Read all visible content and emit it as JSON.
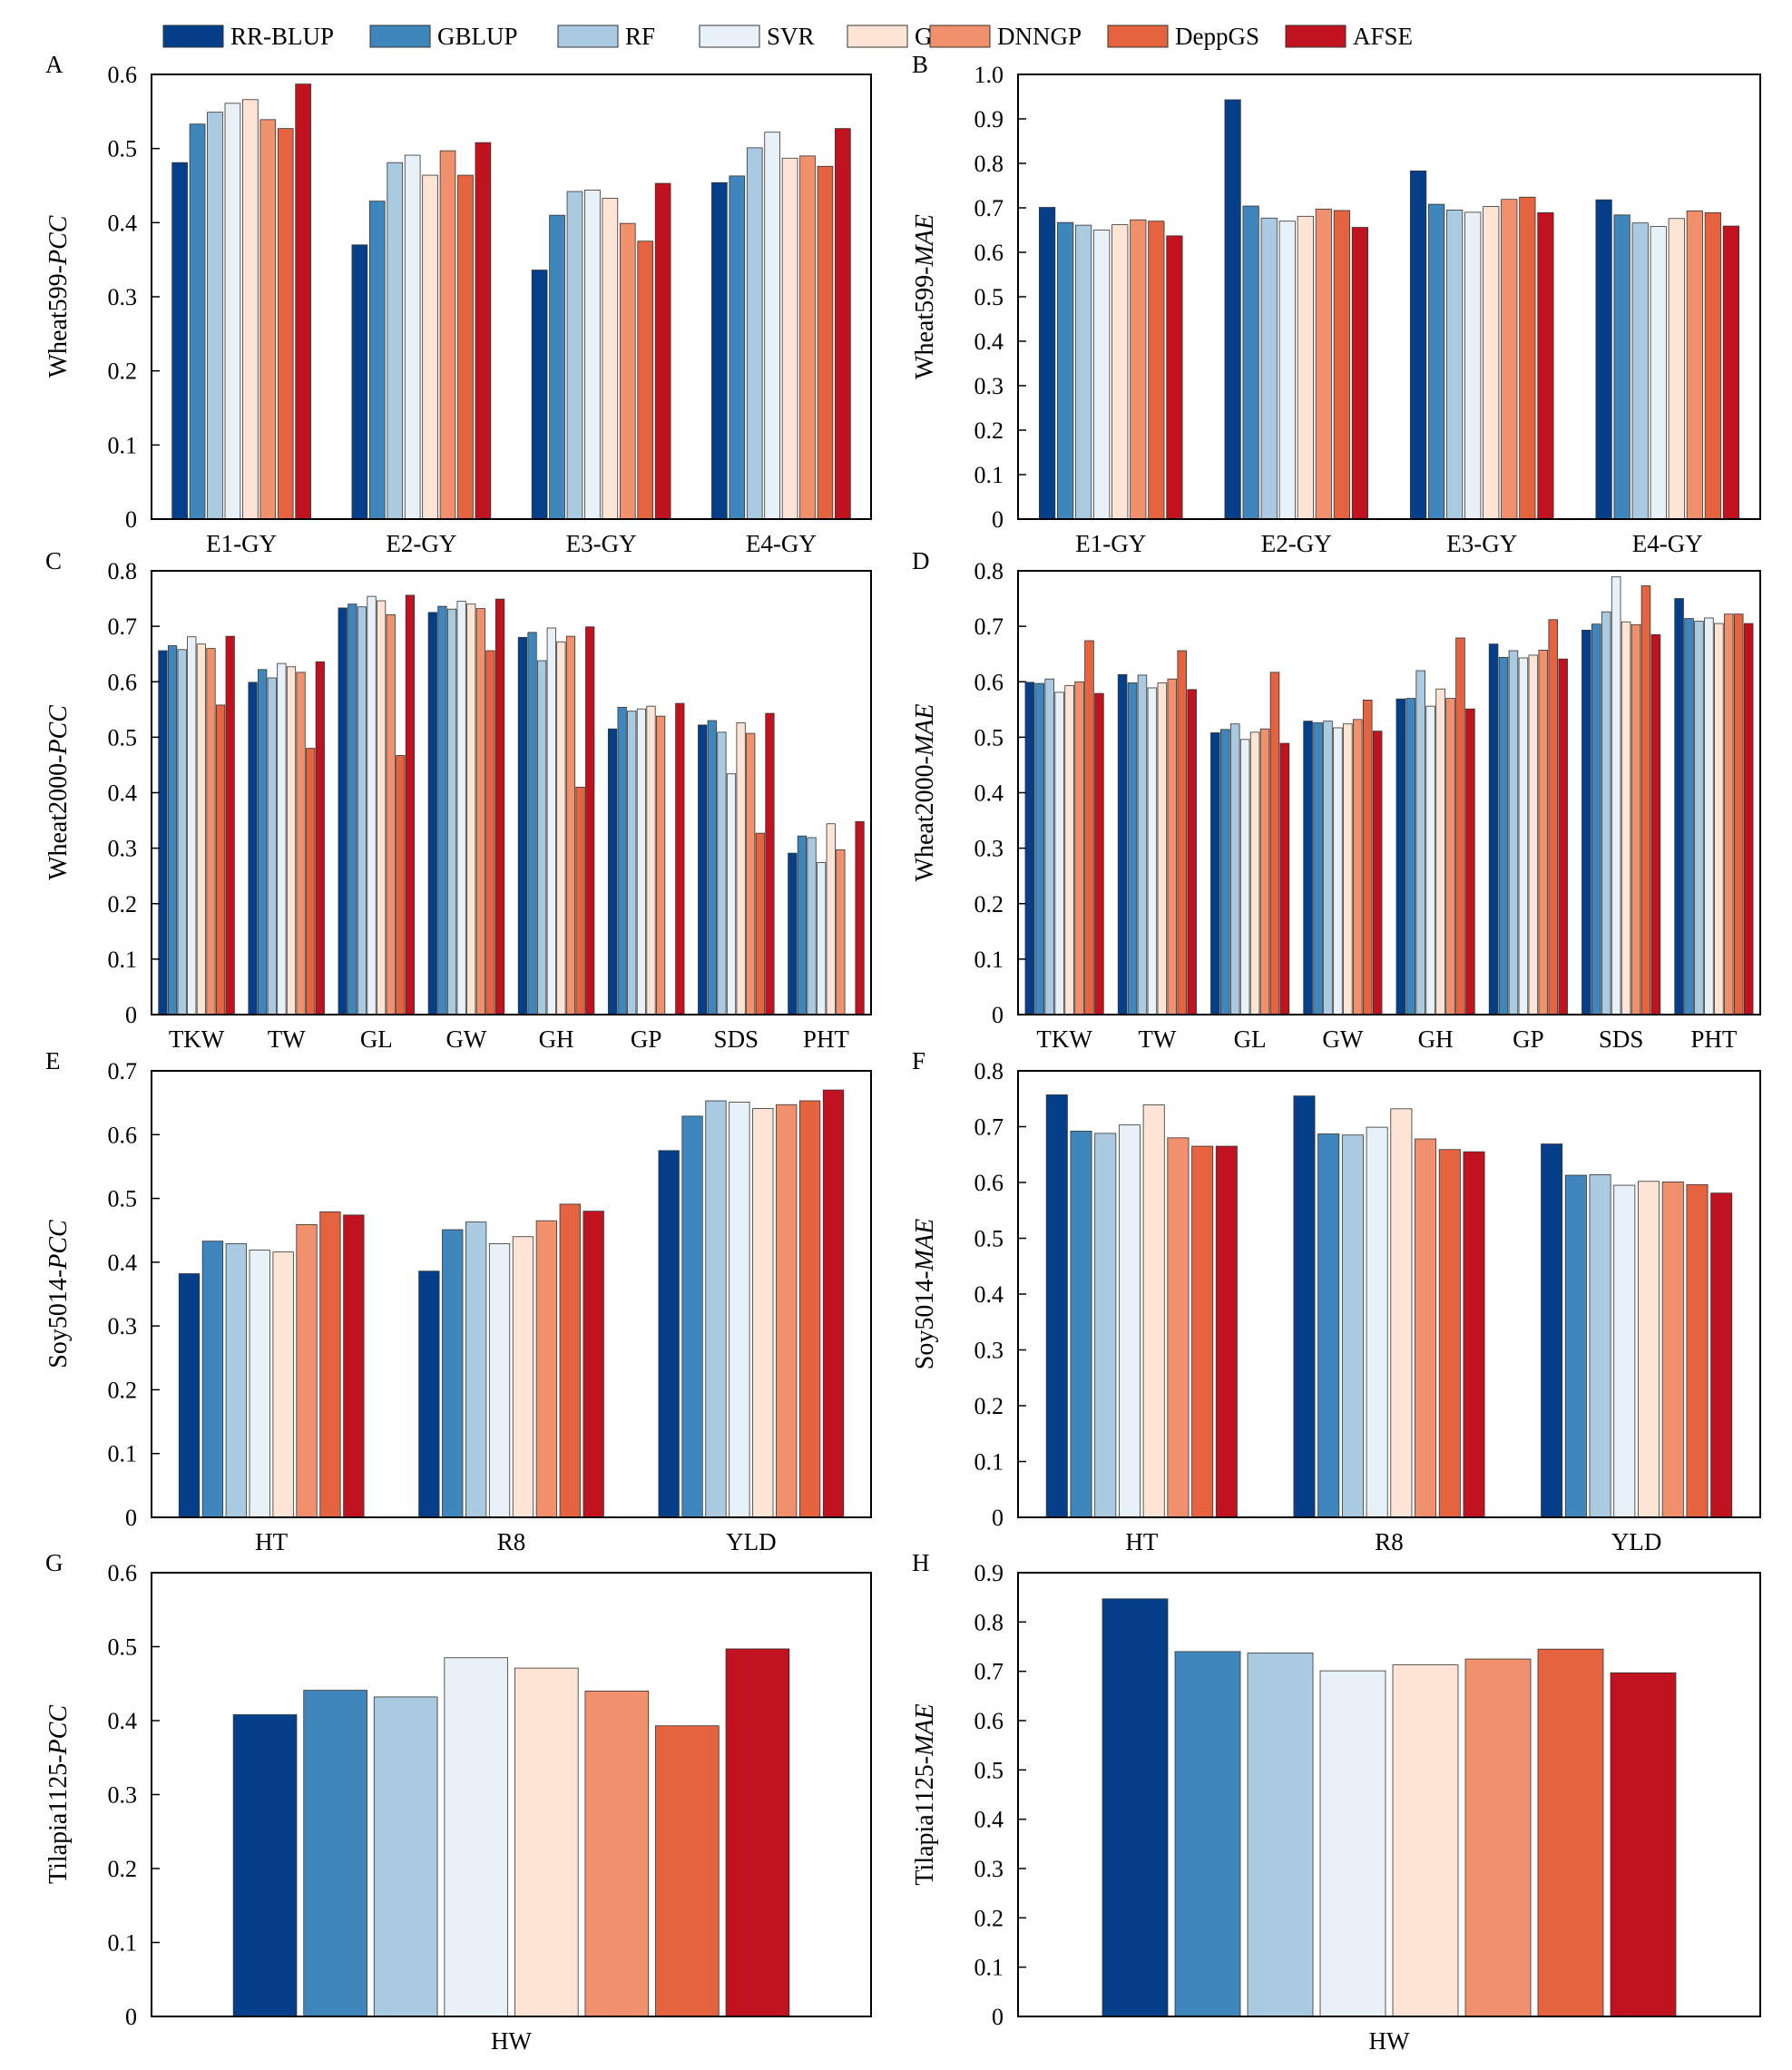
{
  "legend": {
    "items": [
      {
        "name": "RR-BLUP",
        "color": "#053f8a"
      },
      {
        "name": "GBLUP",
        "color": "#3f86bd"
      },
      {
        "name": "RF",
        "color": "#a9cae1"
      },
      {
        "name": "SVR",
        "color": "#e8f0f8"
      },
      {
        "name": "GBR",
        "color": "#fde4d5"
      },
      {
        "name": "DNNGP",
        "color": "#f0906c"
      },
      {
        "name": "DeppGS",
        "color": "#e6633f"
      },
      {
        "name": "AFSE",
        "color": "#c1121f"
      }
    ]
  },
  "chart_data": [
    {
      "panel": "A",
      "type": "bar",
      "ylabel_prefix": "Wheat599-",
      "ylabel_metric": "PCC",
      "ylim": [
        0,
        0.6
      ],
      "yticks": [
        "0",
        "0.1",
        "0.2",
        "0.3",
        "0.4",
        "0.5",
        "0.6"
      ],
      "categories": [
        "E1-GY",
        "E2-GY",
        "E3-GY",
        "E4-GY"
      ],
      "series": [
        {
          "name": "RR-BLUP",
          "values": [
            0.481,
            0.37,
            0.336,
            0.454
          ]
        },
        {
          "name": "GBLUP",
          "values": [
            0.533,
            0.429,
            0.41,
            0.463
          ]
        },
        {
          "name": "RF",
          "values": [
            0.549,
            0.481,
            0.442,
            0.501
          ]
        },
        {
          "name": "SVR",
          "values": [
            0.561,
            0.491,
            0.444,
            0.522
          ]
        },
        {
          "name": "GBR",
          "values": [
            0.566,
            0.464,
            0.433,
            0.487
          ]
        },
        {
          "name": "DNNGP",
          "values": [
            0.539,
            0.497,
            0.399,
            0.49
          ]
        },
        {
          "name": "DeppGS",
          "values": [
            0.527,
            0.464,
            0.375,
            0.476
          ]
        },
        {
          "name": "AFSE",
          "values": [
            0.587,
            0.508,
            0.453,
            0.527
          ]
        }
      ]
    },
    {
      "panel": "B",
      "type": "bar",
      "ylabel_prefix": "Wheat599-",
      "ylabel_metric": "MAE",
      "ylim": [
        0,
        1.0
      ],
      "yticks": [
        "0",
        "0.1",
        "0.2",
        "0.3",
        "0.4",
        "0.5",
        "0.6",
        "0.7",
        "0.8",
        "0.9",
        "1.0"
      ],
      "categories": [
        "E1-GY",
        "E2-GY",
        "E3-GY",
        "E4-GY"
      ],
      "series": [
        {
          "name": "RR-BLUP",
          "values": [
            0.701,
            0.943,
            0.783,
            0.718
          ]
        },
        {
          "name": "GBLUP",
          "values": [
            0.667,
            0.704,
            0.708,
            0.684
          ]
        },
        {
          "name": "RF",
          "values": [
            0.661,
            0.677,
            0.695,
            0.666
          ]
        },
        {
          "name": "SVR",
          "values": [
            0.65,
            0.67,
            0.69,
            0.658
          ]
        },
        {
          "name": "GBR",
          "values": [
            0.662,
            0.681,
            0.703,
            0.676
          ]
        },
        {
          "name": "DNNGP",
          "values": [
            0.673,
            0.697,
            0.719,
            0.693
          ]
        },
        {
          "name": "DeppGS",
          "values": [
            0.67,
            0.694,
            0.724,
            0.689
          ]
        },
        {
          "name": "AFSE",
          "values": [
            0.637,
            0.656,
            0.689,
            0.659
          ]
        }
      ]
    },
    {
      "panel": "C",
      "type": "bar",
      "ylabel_prefix": "Wheat2000-",
      "ylabel_metric": "PCC",
      "ylim": [
        0,
        0.8
      ],
      "yticks": [
        "0",
        "0.1",
        "0.2",
        "0.3",
        "0.4",
        "0.5",
        "0.6",
        "0.7",
        "0.8"
      ],
      "categories": [
        "TKW",
        "TW",
        "GL",
        "GW",
        "GH",
        "GP",
        "SDS",
        "PHT"
      ],
      "series": [
        {
          "name": "RR-BLUP",
          "values": [
            0.656,
            0.599,
            0.733,
            0.725,
            0.68,
            0.515,
            0.522,
            0.291
          ]
        },
        {
          "name": "GBLUP",
          "values": [
            0.665,
            0.622,
            0.74,
            0.736,
            0.689,
            0.554,
            0.53,
            0.322
          ]
        },
        {
          "name": "RF",
          "values": [
            0.658,
            0.607,
            0.735,
            0.731,
            0.638,
            0.547,
            0.509,
            0.319
          ]
        },
        {
          "name": "SVR",
          "values": [
            0.681,
            0.633,
            0.754,
            0.745,
            0.697,
            0.551,
            0.434,
            0.274
          ]
        },
        {
          "name": "GBR",
          "values": [
            0.668,
            0.627,
            0.746,
            0.74,
            0.672,
            0.556,
            0.526,
            0.344
          ]
        },
        {
          "name": "DNNGP",
          "values": [
            0.66,
            0.617,
            0.721,
            0.732,
            0.682,
            0.538,
            0.507,
            0.297
          ]
        },
        {
          "name": "DeppGS",
          "values": [
            0.558,
            0.48,
            0.467,
            0.656,
            0.41,
            null,
            0.327,
            null
          ]
        },
        {
          "name": "AFSE",
          "values": [
            0.682,
            0.636,
            0.756,
            0.749,
            0.699,
            0.561,
            0.543,
            0.348
          ]
        }
      ]
    },
    {
      "panel": "D",
      "type": "bar",
      "ylabel_prefix": "Wheat2000-",
      "ylabel_metric": "MAE",
      "ylim": [
        0,
        0.8
      ],
      "yticks": [
        "0",
        "0.1",
        "0.2",
        "0.3",
        "0.4",
        "0.5",
        "0.6",
        "0.7",
        "0.8"
      ],
      "categories": [
        "TKW",
        "TW",
        "GL",
        "GW",
        "GH",
        "GP",
        "SDS",
        "PHT"
      ],
      "series": [
        {
          "name": "RR-BLUP",
          "values": [
            0.599,
            0.613,
            0.508,
            0.529,
            0.569,
            0.668,
            0.693,
            0.75
          ]
        },
        {
          "name": "GBLUP",
          "values": [
            0.597,
            0.598,
            0.514,
            0.526,
            0.57,
            0.644,
            0.704,
            0.714
          ]
        },
        {
          "name": "RF",
          "values": [
            0.605,
            0.612,
            0.524,
            0.529,
            0.62,
            0.656,
            0.726,
            0.709
          ]
        },
        {
          "name": "SVR",
          "values": [
            0.581,
            0.589,
            0.496,
            0.517,
            0.556,
            0.643,
            0.789,
            0.715
          ]
        },
        {
          "name": "GBR",
          "values": [
            0.593,
            0.598,
            0.509,
            0.524,
            0.587,
            0.648,
            0.708,
            0.705
          ]
        },
        {
          "name": "DNNGP",
          "values": [
            0.6,
            0.605,
            0.515,
            0.532,
            0.57,
            0.657,
            0.703,
            0.722
          ]
        },
        {
          "name": "DeppGS",
          "values": [
            0.674,
            0.656,
            0.617,
            0.567,
            0.679,
            0.712,
            0.773,
            0.722
          ]
        },
        {
          "name": "AFSE",
          "values": [
            0.579,
            0.586,
            0.489,
            0.511,
            0.551,
            0.641,
            0.685,
            0.705
          ]
        }
      ]
    },
    {
      "panel": "E",
      "type": "bar",
      "ylabel_prefix": "Soy5014-",
      "ylabel_metric": "PCC",
      "ylim": [
        0,
        0.7
      ],
      "yticks": [
        "0",
        "0.1",
        "0.2",
        "0.3",
        "0.4",
        "0.5",
        "0.6",
        "0.7"
      ],
      "categories": [
        "HT",
        "R8",
        "YLD"
      ],
      "series": [
        {
          "name": "RR-BLUP",
          "values": [
            0.382,
            0.386,
            0.575
          ]
        },
        {
          "name": "GBLUP",
          "values": [
            0.433,
            0.451,
            0.629
          ]
        },
        {
          "name": "RF",
          "values": [
            0.429,
            0.463,
            0.653
          ]
        },
        {
          "name": "SVR",
          "values": [
            0.419,
            0.429,
            0.651
          ]
        },
        {
          "name": "GBR",
          "values": [
            0.416,
            0.44,
            0.641
          ]
        },
        {
          "name": "DNNGP",
          "values": [
            0.459,
            0.465,
            0.647
          ]
        },
        {
          "name": "DeppGS",
          "values": [
            0.479,
            0.491,
            0.653
          ]
        },
        {
          "name": "AFSE",
          "values": [
            0.474,
            0.48,
            0.67
          ]
        }
      ]
    },
    {
      "panel": "F",
      "type": "bar",
      "ylabel_prefix": "Soy5014-",
      "ylabel_metric": "MAE",
      "ylim": [
        0,
        0.8
      ],
      "yticks": [
        "0",
        "0.1",
        "0.2",
        "0.3",
        "0.4",
        "0.5",
        "0.6",
        "0.7",
        "0.8"
      ],
      "categories": [
        "HT",
        "R8",
        "YLD"
      ],
      "series": [
        {
          "name": "RR-BLUP",
          "values": [
            0.757,
            0.755,
            0.669
          ]
        },
        {
          "name": "GBLUP",
          "values": [
            0.692,
            0.687,
            0.613
          ]
        },
        {
          "name": "RF",
          "values": [
            0.688,
            0.685,
            0.614
          ]
        },
        {
          "name": "SVR",
          "values": [
            0.703,
            0.699,
            0.595
          ]
        },
        {
          "name": "GBR",
          "values": [
            0.739,
            0.732,
            0.602
          ]
        },
        {
          "name": "DNNGP",
          "values": [
            0.68,
            0.678,
            0.601
          ]
        },
        {
          "name": "DeppGS",
          "values": [
            0.665,
            0.659,
            0.596
          ]
        },
        {
          "name": "AFSE",
          "values": [
            0.665,
            0.655,
            0.581
          ]
        }
      ]
    },
    {
      "panel": "G",
      "type": "bar",
      "ylabel_prefix": "Tilapia1125-",
      "ylabel_metric": "PCC",
      "ylim": [
        0,
        0.6
      ],
      "yticks": [
        "0",
        "0.1",
        "0.2",
        "0.3",
        "0.4",
        "0.5",
        "0.6"
      ],
      "categories": [
        "HW"
      ],
      "series": [
        {
          "name": "RR-BLUP",
          "values": [
            0.408
          ]
        },
        {
          "name": "GBLUP",
          "values": [
            0.441
          ]
        },
        {
          "name": "RF",
          "values": [
            0.432
          ]
        },
        {
          "name": "SVR",
          "values": [
            0.485
          ]
        },
        {
          "name": "GBR",
          "values": [
            0.471
          ]
        },
        {
          "name": "DNNGP",
          "values": [
            0.44
          ]
        },
        {
          "name": "DeppGS",
          "values": [
            0.393
          ]
        },
        {
          "name": "AFSE",
          "values": [
            0.497
          ]
        }
      ]
    },
    {
      "panel": "H",
      "type": "bar",
      "ylabel_prefix": "Tilapia1125-",
      "ylabel_metric": "MAE",
      "ylim": [
        0,
        0.9
      ],
      "yticks": [
        "0",
        "0.1",
        "0.2",
        "0.3",
        "0.4",
        "0.5",
        "0.6",
        "0.7",
        "0.8",
        "0.9"
      ],
      "categories": [
        "HW"
      ],
      "series": [
        {
          "name": "RR-BLUP",
          "values": [
            0.847
          ]
        },
        {
          "name": "GBLUP",
          "values": [
            0.74
          ]
        },
        {
          "name": "RF",
          "values": [
            0.737
          ]
        },
        {
          "name": "SVR",
          "values": [
            0.701
          ]
        },
        {
          "name": "GBR",
          "values": [
            0.713
          ]
        },
        {
          "name": "DNNGP",
          "values": [
            0.725
          ]
        },
        {
          "name": "DeppGS",
          "values": [
            0.745
          ]
        },
        {
          "name": "AFSE",
          "values": [
            0.697
          ]
        }
      ]
    }
  ]
}
